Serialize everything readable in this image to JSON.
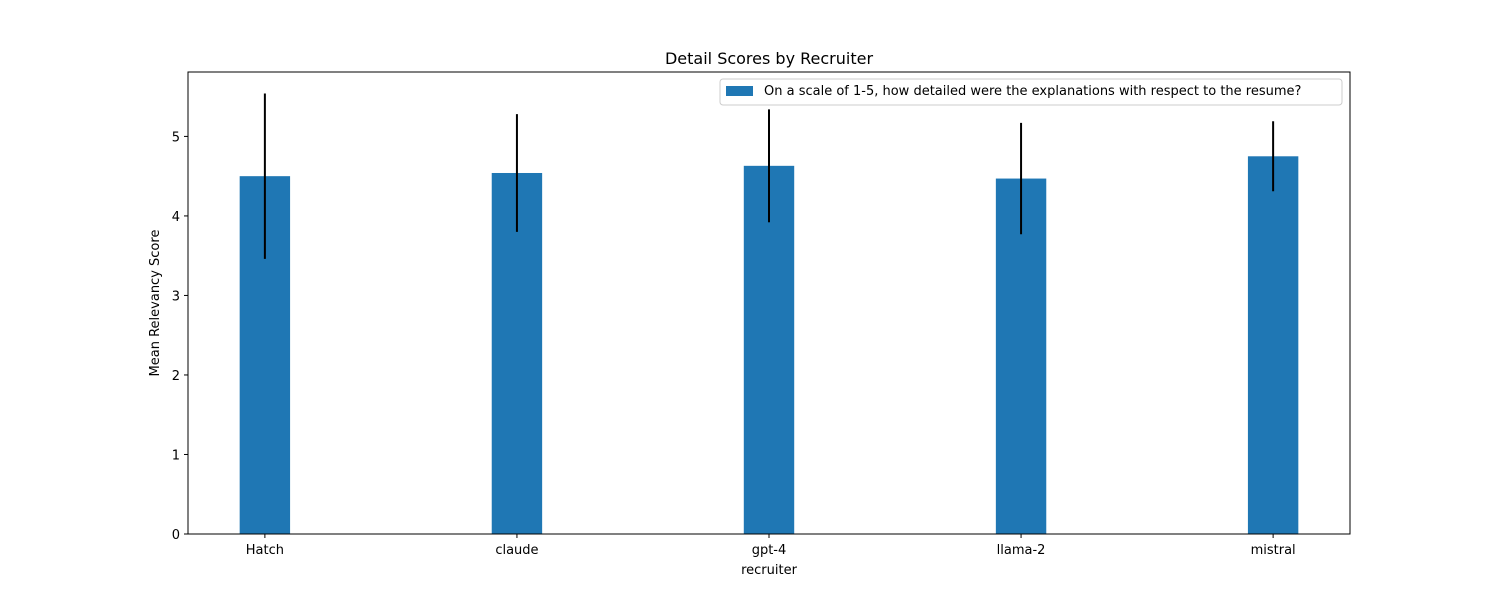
{
  "chart_data": {
    "type": "bar",
    "title": "Detail Scores by Recruiter",
    "xlabel": "recruiter",
    "ylabel": "Mean Relevancy Score",
    "categories": [
      "Hatch",
      "claude",
      "gpt-4",
      "llama-2",
      "mistral"
    ],
    "series": [
      {
        "name": "On a scale of 1-5, how detailed were the explanations with respect to the resume?",
        "values": [
          4.5,
          4.54,
          4.63,
          4.47,
          4.75
        ],
        "error": [
          1.04,
          0.74,
          0.71,
          0.7,
          0.44
        ],
        "color": "#1f77b4"
      }
    ],
    "ylim": [
      0,
      5.81
    ],
    "yticks": [
      0,
      1,
      2,
      3,
      4,
      5
    ],
    "grid": false,
    "legend": "top-right",
    "errorbar_color": "#000000"
  }
}
